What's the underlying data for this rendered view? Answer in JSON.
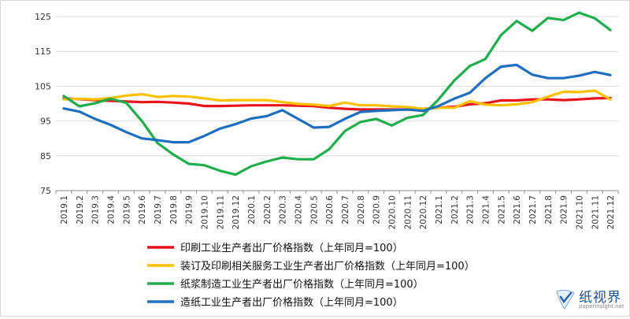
{
  "chart_data": {
    "type": "line",
    "title": "",
    "xlabel": "",
    "ylabel": "",
    "ylim": [
      75,
      125
    ],
    "yticks": [
      75,
      85,
      95,
      105,
      115,
      125
    ],
    "grid": "horizontal",
    "legend_position": "bottom",
    "categories": [
      "2019.1",
      "2019.2",
      "2019.3",
      "2019.4",
      "2019.5",
      "2019.6",
      "2019.7",
      "2019.8",
      "2019.9",
      "2019.10",
      "2019.11",
      "2019.12",
      "2020.1",
      "2020.2",
      "2020.3",
      "2020.4",
      "2020.5",
      "2020.6",
      "2020.7",
      "2020.8",
      "2020.9",
      "2020.10",
      "2020.11",
      "2020.12",
      "2021.1",
      "2021.2",
      "2021.3",
      "2021.4",
      "2021.5",
      "2021.6",
      "2021.7",
      "2021.8",
      "2021.9",
      "2021.10",
      "2021.11",
      "2021.12"
    ],
    "series": [
      {
        "name": "印刷工业生产者出厂价格指数（上年同月=100）",
        "color": "#e8141a",
        "values": [
          101.5,
          101.3,
          101.0,
          100.8,
          100.6,
          100.4,
          100.5,
          100.3,
          100.0,
          99.3,
          99.3,
          99.4,
          99.5,
          99.5,
          99.5,
          99.4,
          99.3,
          98.8,
          98.5,
          98.3,
          98.3,
          98.3,
          98.3,
          98.5,
          98.8,
          99.1,
          99.8,
          100.1,
          100.9,
          100.9,
          101.2,
          101.2,
          101.0,
          101.2,
          101.5,
          101.6
        ]
      },
      {
        "name": "装订及印刷相关服务工业生产者出厂价格指数（上年同月=100）",
        "color": "#ffc000",
        "values": [
          101.2,
          101.4,
          101.2,
          101.6,
          102.3,
          102.7,
          101.9,
          102.2,
          102.0,
          101.5,
          100.9,
          101.0,
          101.0,
          101.0,
          100.4,
          99.9,
          99.7,
          99.3,
          100.3,
          99.5,
          99.5,
          99.2,
          99.0,
          98.5,
          98.8,
          98.8,
          100.7,
          99.7,
          99.5,
          99.8,
          100.4,
          102.0,
          103.4,
          103.3,
          103.7,
          101.2
        ]
      },
      {
        "name": "纸浆制造工业生产者出厂价格指数（上年同月=100）",
        "color": "#1fae4b",
        "values": [
          102.2,
          99.2,
          100.1,
          101.4,
          100.2,
          95.0,
          88.7,
          85.4,
          82.7,
          82.3,
          80.7,
          79.6,
          82.0,
          83.4,
          84.5,
          84.0,
          84.0,
          86.9,
          92.1,
          94.7,
          95.6,
          93.7,
          95.9,
          96.7,
          101.2,
          106.6,
          110.8,
          112.8,
          119.7,
          123.7,
          120.9,
          124.6,
          124.0,
          126.1,
          124.5,
          121.1
        ]
      },
      {
        "name": "造纸工业生产者出厂价格指数（上年同月=100）",
        "color": "#1f6fbf",
        "values": [
          98.6,
          97.7,
          95.6,
          93.9,
          91.8,
          90.0,
          89.5,
          88.9,
          88.9,
          90.7,
          92.8,
          94.1,
          95.7,
          96.4,
          98.1,
          95.6,
          93.1,
          93.3,
          95.6,
          97.6,
          97.9,
          98.1,
          98.3,
          97.9,
          99.3,
          101.4,
          103.1,
          107.3,
          110.6,
          111.1,
          108.3,
          107.3,
          107.3,
          108.0,
          109.1,
          108.2
        ]
      }
    ]
  },
  "watermark": {
    "name_cn": "纸视界",
    "url": "paperinsight.net"
  }
}
